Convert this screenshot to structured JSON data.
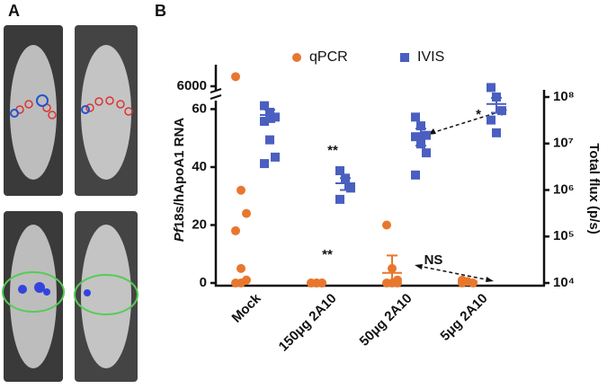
{
  "panel_a_label": "A",
  "chart_data": {
    "type": "dotplot",
    "panel_label": "B",
    "ylabel_italic": "Pf",
    "ylabel": "18s/hApoA1 RNA",
    "y2label": "Total flux (p/s)",
    "categories": [
      "Mock",
      "150μg 2A10",
      "50μg 2A10",
      "5μg 2A10"
    ],
    "ylim": [
      0,
      62
    ],
    "yticks": [
      0,
      20,
      40,
      60
    ],
    "ylim_upper": [
      5700,
      6900
    ],
    "yticks_upper": [
      6000
    ],
    "y2lim": [
      10000,
      100000000
    ],
    "y2scale": "log",
    "y2ticks": [
      {
        "value": 10000,
        "label": "10⁴"
      },
      {
        "value": 100000,
        "label": "10⁵"
      },
      {
        "value": 1000000,
        "label": "10⁶"
      },
      {
        "value": 10000000,
        "label": "10⁷"
      },
      {
        "value": 100000000,
        "label": "10⁸"
      }
    ],
    "series": [
      {
        "name": "qPCR",
        "color": "#e8772e",
        "marker": "circle",
        "values": [
          [
            6400,
            32,
            24,
            18,
            5,
            1,
            0,
            0
          ],
          [
            0,
            0,
            0,
            0,
            0,
            0
          ],
          [
            20,
            5,
            1,
            0,
            0,
            0
          ],
          [
            1,
            0.5,
            0,
            0
          ]
        ],
        "means": [
          null,
          0,
          3.5,
          0.5
        ],
        "sem": [
          null,
          null,
          6,
          null
        ]
      },
      {
        "name": "IVIS",
        "color": "#4a5fbf",
        "marker": "square",
        "axis": "y2",
        "values": [
          [
            65000000,
            47000000,
            37000000,
            30000000,
            12000000,
            5100000,
            3700000
          ],
          [
            2600000,
            1800000,
            1100000,
            630000
          ],
          [
            37000000,
            24000000,
            15000000,
            14000000,
            9800000,
            6300000,
            2100000
          ],
          [
            160000000,
            100000000,
            51000000,
            32000000,
            17000000
          ]
        ],
        "means": [
          41000000,
          1400000,
          15000000,
          71000000
        ],
        "sem": [
          12000000,
          400000,
          6000000,
          25000000
        ]
      }
    ],
    "annotations": [
      "**",
      "**",
      "*",
      "NS"
    ]
  }
}
